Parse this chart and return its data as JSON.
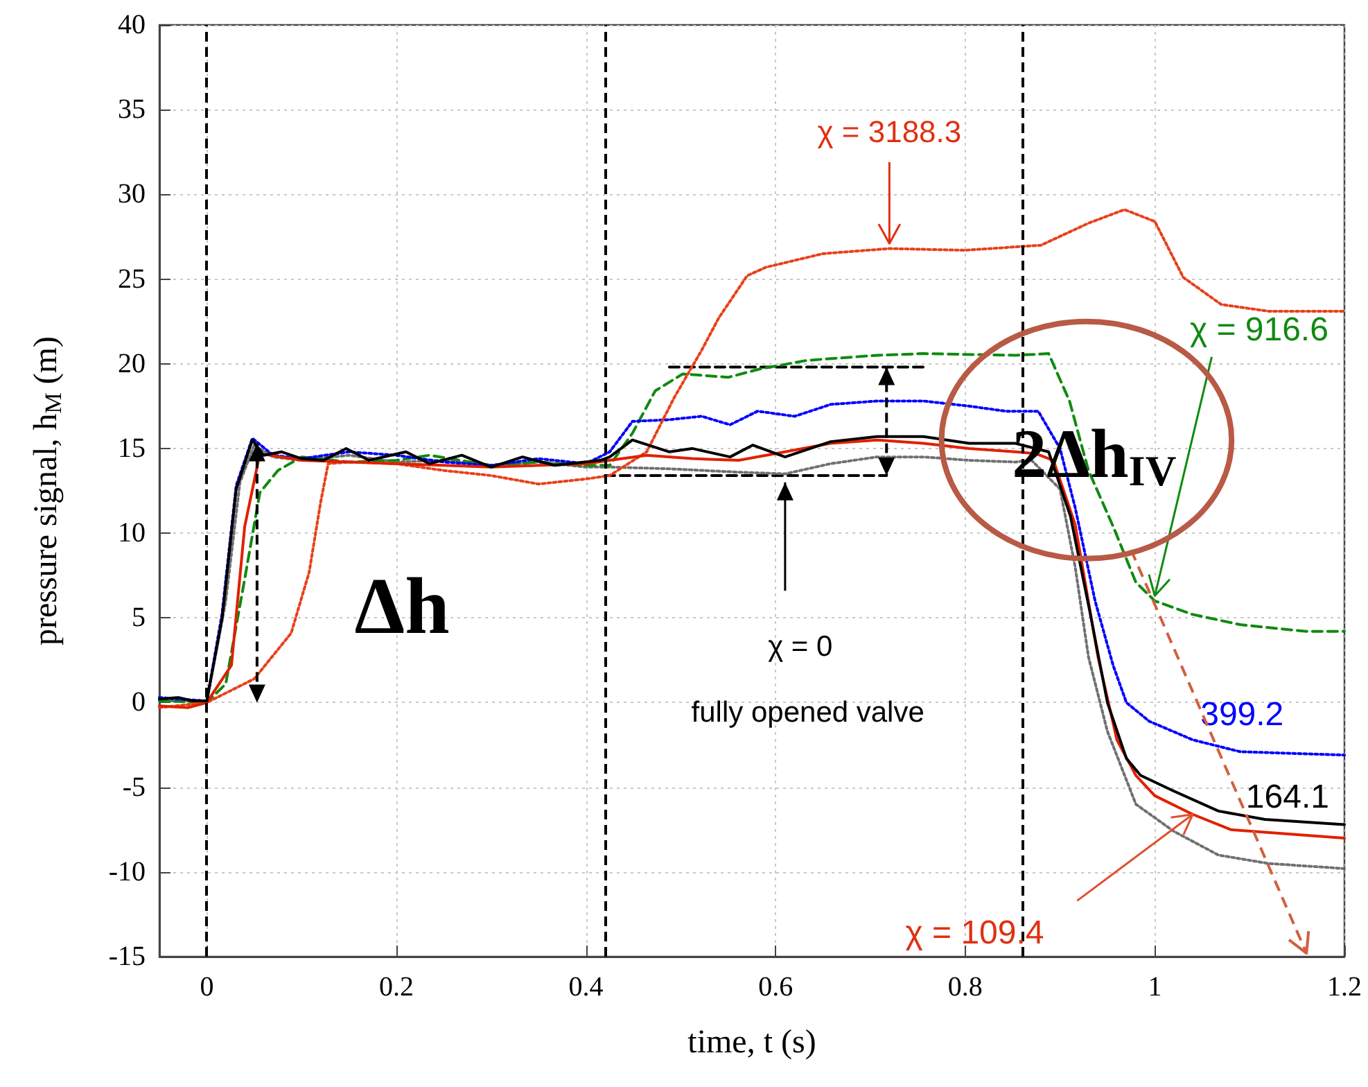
{
  "chart_data": {
    "type": "line",
    "xlabel": "time, t (s)",
    "ylabel": "pressure signal, h$_{M}$ (m)",
    "xlim": [
      -0.05,
      1.2
    ],
    "xticks": [
      0,
      0.2,
      0.4,
      0.6,
      0.8,
      1,
      1.2
    ],
    "ylim": [
      -15,
      40
    ],
    "yticks": [
      -15,
      -10,
      -5,
      0,
      5,
      10,
      15,
      20,
      25,
      30,
      35,
      40
    ],
    "grid": true,
    "marker": "none",
    "series": [
      {
        "color": "#000000",
        "line_style": "dashed",
        "x": [
          0.488,
          0.76
        ],
        "values": [
          19.8,
          19.8
        ]
      },
      {
        "color": "#000000",
        "line_style": "dashed",
        "x": [
          0.42,
          0.717
        ],
        "values": [
          13.4,
          13.4
        ]
      },
      {
        "color": "#707070",
        "line_style": "dotted",
        "x": [
          -0.05,
          0,
          0.02,
          0.035,
          0.05,
          0.07,
          0.1,
          0.15,
          0.2,
          0.25,
          0.3,
          0.35,
          0.4,
          0.425,
          0.488,
          0.561,
          0.61,
          0.658,
          0.707,
          0.756,
          0.804,
          0.853,
          0.87,
          0.9,
          0.916,
          0.93,
          0.95,
          0.98,
          1.02,
          1.067,
          1.12,
          1.2
        ],
        "values": [
          0.1,
          0.1,
          6,
          13,
          15.2,
          14.5,
          14.3,
          14.6,
          14.2,
          14.3,
          14.0,
          14.2,
          13.9,
          13.9,
          13.8,
          13.6,
          13.5,
          14.1,
          14.5,
          14.5,
          14.3,
          14.2,
          14.3,
          12.6,
          8.0,
          2.7,
          -1.7,
          -6.0,
          -7.6,
          -9.0,
          -9.5,
          -9.8
        ]
      },
      {
        "color": "#108a10",
        "line_style": "dashed",
        "x": [
          -0.05,
          0,
          0.02,
          0.04,
          0.056,
          0.075,
          0.1,
          0.15,
          0.2,
          0.235,
          0.3,
          0.35,
          0.4,
          0.425,
          0.449,
          0.473,
          0.502,
          0.55,
          0.584,
          0.633,
          0.707,
          0.756,
          0.853,
          0.888,
          0.91,
          0.93,
          0.956,
          0.98,
          1.0,
          1.04,
          1.09,
          1.16,
          1.2
        ],
        "values": [
          0.1,
          0,
          1.1,
          7.3,
          12.4,
          13.7,
          14.5,
          14.2,
          14.3,
          14.6,
          14.0,
          14.2,
          14.0,
          14.0,
          15.9,
          18.4,
          19.4,
          19.2,
          19.7,
          20.2,
          20.5,
          20.6,
          20.5,
          20.6,
          17.8,
          13.7,
          10.4,
          7.1,
          6.0,
          5.2,
          4.6,
          4.2,
          4.2
        ]
      },
      {
        "color": "#0000ff",
        "line_style": "dotted",
        "x": [
          -0.05,
          -0.03,
          0,
          0.016,
          0.031,
          0.048,
          0.07,
          0.1,
          0.15,
          0.2,
          0.25,
          0.3,
          0.35,
          0.4,
          0.425,
          0.449,
          0.488,
          0.522,
          0.552,
          0.581,
          0.62,
          0.658,
          0.707,
          0.756,
          0.804,
          0.843,
          0.877,
          0.9,
          0.916,
          0.937,
          0.956,
          0.97,
          0.994,
          1.04,
          1.09,
          1.2
        ],
        "values": [
          0.3,
          0.2,
          0.1,
          5.2,
          12.8,
          15.6,
          14.6,
          14.4,
          14.8,
          14.6,
          14.2,
          14.0,
          14.4,
          14.1,
          14.8,
          16.6,
          16.7,
          16.9,
          16.4,
          17.2,
          16.9,
          17.6,
          17.8,
          17.8,
          17.5,
          17.2,
          17.2,
          15.0,
          11.5,
          6.0,
          2.2,
          0,
          -1.1,
          -2.2,
          -2.9,
          -3.1
        ]
      },
      {
        "color": "#e8401a",
        "line_style": "dotted",
        "x": [
          -0.05,
          0,
          0.05,
          0.089,
          0.108,
          0.12,
          0.128,
          0.15,
          0.2,
          0.25,
          0.3,
          0.35,
          0.4,
          0.425,
          0.464,
          0.493,
          0.522,
          0.54,
          0.57,
          0.59,
          0.65,
          0.72,
          0.8,
          0.88,
          0.93,
          0.968,
          1.0,
          1.03,
          1.07,
          1.12,
          1.2
        ],
        "values": [
          -0.3,
          0,
          1.4,
          4.1,
          7.7,
          11.8,
          14.1,
          14.2,
          14.1,
          13.7,
          13.4,
          12.9,
          13.2,
          13.4,
          14.8,
          18.0,
          20.8,
          22.7,
          25.2,
          25.7,
          26.5,
          26.8,
          26.7,
          27.0,
          28.3,
          29.1,
          28.4,
          25.1,
          23.5,
          23.1,
          23.1
        ]
      },
      {
        "color": "#e02000",
        "line_style": "solid",
        "x": [
          -0.05,
          -0.02,
          0,
          0.026,
          0.04,
          0.056,
          0.1,
          0.15,
          0.2,
          0.25,
          0.3,
          0.35,
          0.4,
          0.425,
          0.464,
          0.512,
          0.561,
          0.61,
          0.658,
          0.707,
          0.756,
          0.804,
          0.853,
          0.874,
          0.893,
          0.916,
          0.94,
          0.96,
          0.98,
          1.0,
          1.04,
          1.08,
          1.2
        ],
        "values": [
          -0.2,
          -0.3,
          0,
          2.2,
          10.4,
          14.7,
          14.3,
          14.2,
          14.1,
          14.0,
          13.9,
          14.0,
          14.1,
          14.3,
          14.6,
          14.4,
          14.3,
          14.8,
          15.3,
          15.5,
          15.3,
          15.0,
          14.8,
          14.7,
          14.3,
          10.5,
          2.7,
          -2.2,
          -4.3,
          -5.5,
          -6.6,
          -7.5,
          -8.0
        ]
      },
      {
        "color": "#000000",
        "line_style": "solid",
        "x": [
          -0.05,
          -0.03,
          -0.015,
          0,
          0.016,
          0.031,
          0.048,
          0.06,
          0.079,
          0.1,
          0.123,
          0.147,
          0.171,
          0.21,
          0.235,
          0.269,
          0.3,
          0.333,
          0.367,
          0.415,
          0.425,
          0.449,
          0.488,
          0.512,
          0.552,
          0.576,
          0.61,
          0.658,
          0.707,
          0.756,
          0.804,
          0.853,
          0.888,
          0.911,
          0.931,
          0.95,
          0.97,
          0.985,
          1.019,
          1.067,
          1.116,
          1.2
        ],
        "values": [
          0.2,
          0.3,
          0.1,
          0.1,
          4.9,
          12.6,
          15.5,
          14.6,
          14.8,
          14.4,
          14.3,
          15.0,
          14.3,
          14.8,
          14.1,
          14.6,
          13.9,
          14.5,
          14.0,
          14.3,
          14.5,
          15.5,
          14.8,
          15.0,
          14.5,
          15.2,
          14.5,
          15.4,
          15.7,
          15.7,
          15.3,
          15.3,
          14.8,
          11.0,
          5.5,
          0,
          -3.3,
          -4.3,
          -5.2,
          -6.4,
          -6.9,
          -7.2
        ]
      }
    ],
    "ref_lines": [
      {
        "axis": "x",
        "value": 0,
        "color": "#000000",
        "line_style": "dashed"
      },
      {
        "axis": "x",
        "value": 0.42,
        "color": "#000000",
        "line_style": "dashed"
      },
      {
        "axis": "x",
        "value": 0.865,
        "color": "#000000",
        "line_style": "dashed"
      }
    ],
    "annotations": [
      {
        "text": "χ = 3188.3",
        "x": 0.72,
        "y": 26.8
      },
      {
        "text": "χ = 916.6",
        "x": 1.0,
        "y": 6.0
      },
      "399.2",
      "164.1",
      {
        "text": "χ = 109.4",
        "x": 1.04,
        "y": -6.6
      },
      "χ = 0",
      "fully opened valve",
      "Δh",
      "2Δh$_{IV}$"
    ]
  }
}
